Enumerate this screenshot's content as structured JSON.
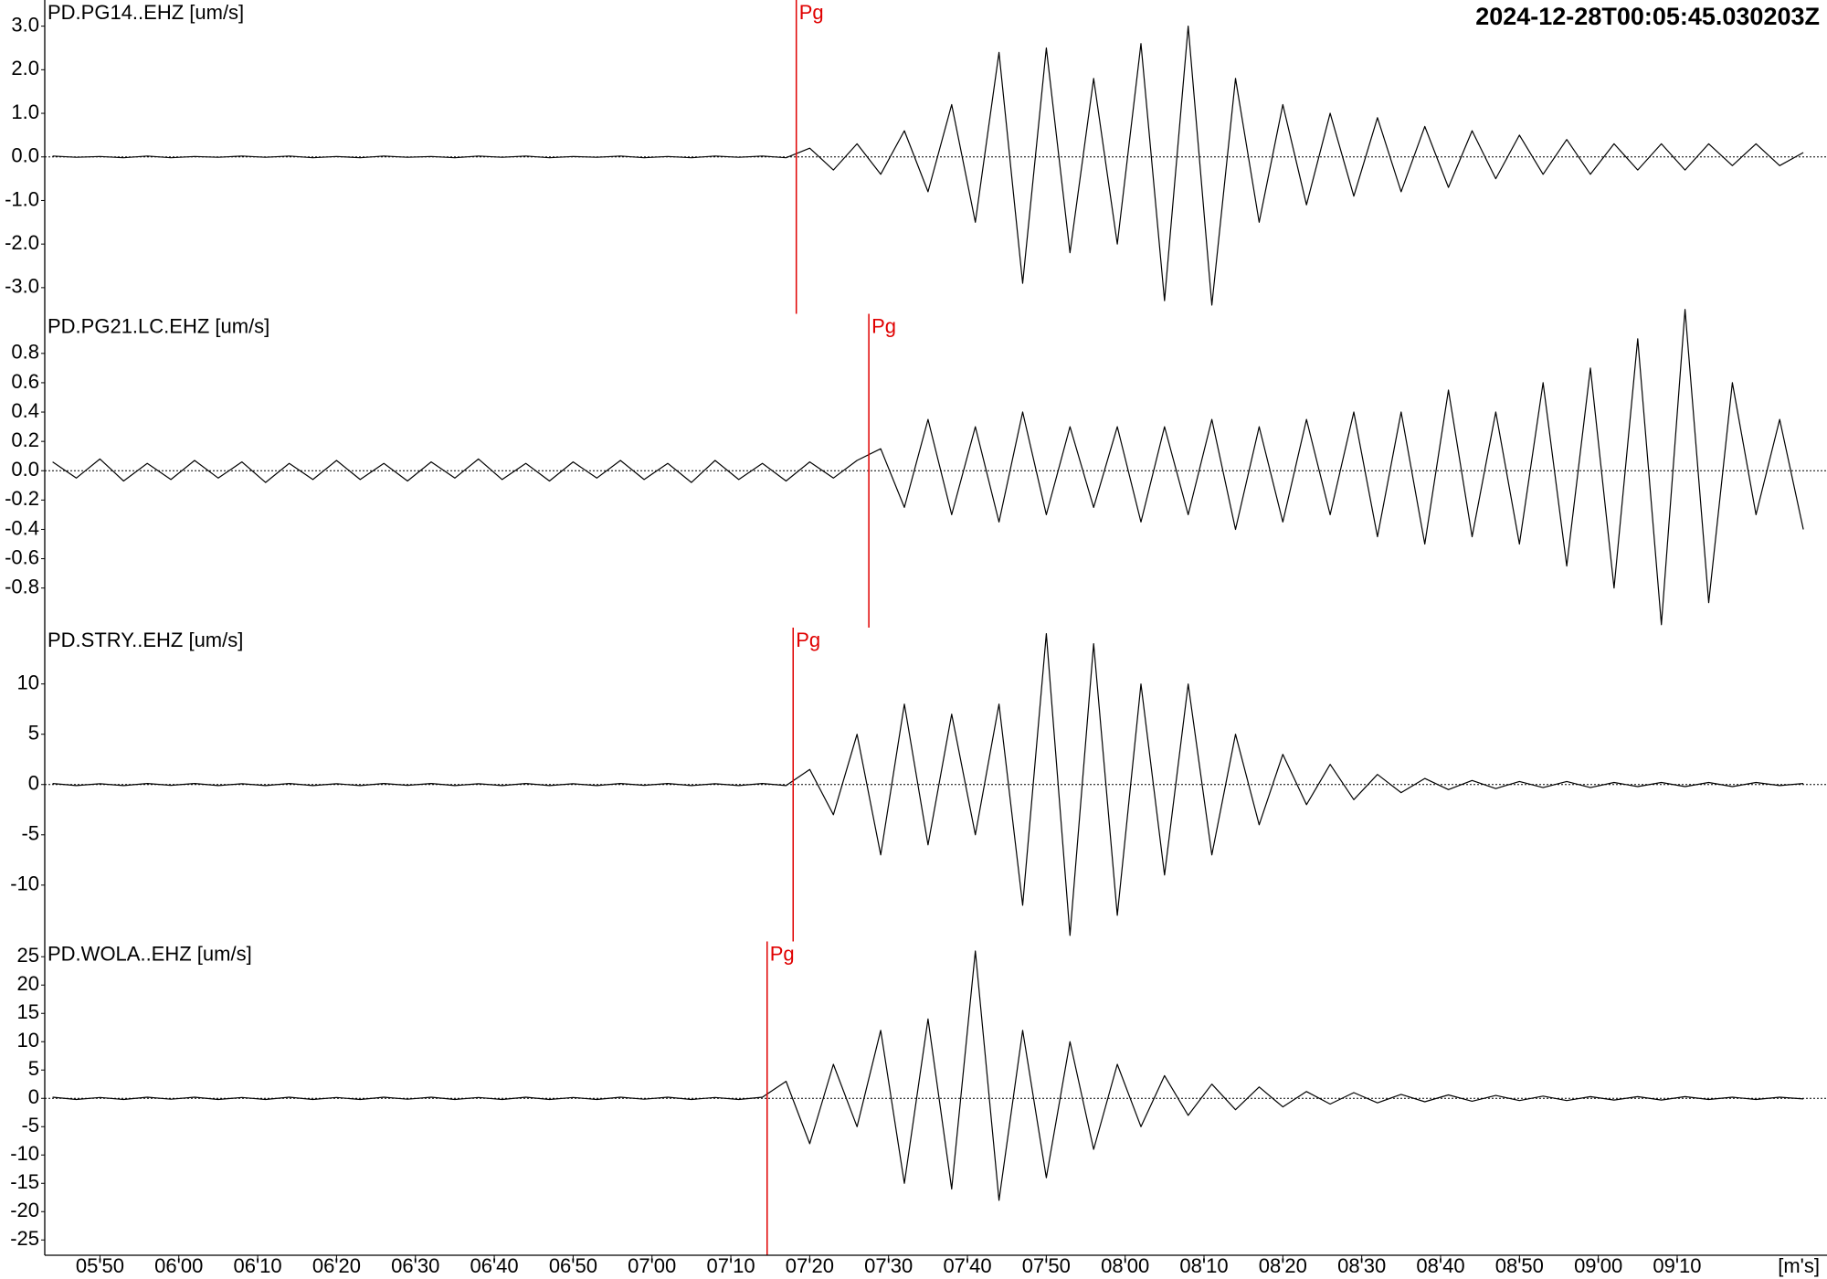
{
  "timestamp": "2024-12-28T00:05:45.030203Z",
  "chart_data": [
    {
      "type": "line",
      "title": "PD.PG14..EHZ [um/s]",
      "color": "#000000",
      "xlim": [
        343,
        569
      ],
      "ylim": [
        -3.6,
        3.6
      ],
      "yticks": [
        {
          "value": 3,
          "label": "3.0"
        },
        {
          "value": 2,
          "label": "2.0"
        },
        {
          "value": 1,
          "label": "1.0"
        },
        {
          "value": 0,
          "label": "0.0"
        },
        {
          "value": -1,
          "label": "-1.0"
        },
        {
          "value": -2,
          "label": "-2.0"
        },
        {
          "value": -3,
          "label": "-3.0"
        }
      ],
      "pick": {
        "label": "Pg",
        "x": 438.3,
        "color": "#e00000"
      },
      "x": [
        344,
        347,
        350,
        353,
        356,
        359,
        362,
        365,
        368,
        371,
        374,
        377,
        380,
        383,
        386,
        389,
        392,
        395,
        398,
        401,
        404,
        407,
        410,
        413,
        416,
        419,
        422,
        425,
        428,
        431,
        434,
        437,
        440,
        443,
        446,
        449,
        452,
        455,
        458,
        461,
        464,
        467,
        470,
        473,
        476,
        479,
        482,
        485,
        488,
        491,
        494,
        497,
        500,
        503,
        506,
        509,
        512,
        515,
        518,
        521,
        524,
        527,
        530,
        533,
        536,
        539,
        542,
        545,
        548,
        551,
        554,
        557,
        560,
        563,
        566
      ],
      "values": [
        0.02,
        -0.01,
        0.01,
        -0.02,
        0.02,
        -0.02,
        0.01,
        -0.01,
        0.02,
        -0.01,
        0.02,
        -0.02,
        0.01,
        -0.02,
        0.02,
        -0.01,
        0.01,
        -0.02,
        0.02,
        -0.01,
        0.02,
        -0.02,
        0.01,
        -0.01,
        0.02,
        -0.02,
        0.01,
        -0.02,
        0.02,
        -0.01,
        0.02,
        -0.02,
        0.2,
        -0.3,
        0.3,
        -0.4,
        0.6,
        -0.8,
        1.2,
        -1.5,
        2.4,
        -2.9,
        2.5,
        -2.2,
        1.8,
        -2.0,
        2.6,
        -3.3,
        3.0,
        -3.4,
        1.8,
        -1.5,
        1.2,
        -1.1,
        1.0,
        -0.9,
        0.9,
        -0.8,
        0.7,
        -0.7,
        0.6,
        -0.5,
        0.5,
        -0.4,
        0.4,
        -0.4,
        0.3,
        -0.3,
        0.3,
        -0.3,
        0.3,
        -0.2,
        0.3,
        -0.2,
        0.1
      ]
    },
    {
      "type": "line",
      "title": "PD.PG21.LC.EHZ [um/s]",
      "color": "#000000",
      "xlim": [
        343,
        569
      ],
      "ylim": [
        -1.07,
        1.07
      ],
      "yticks": [
        0.8,
        0.6,
        0.4,
        0.2,
        {
          "value": 0,
          "label": "0.0"
        },
        -0.2,
        -0.4,
        -0.6,
        -0.8
      ],
      "pick": {
        "label": "Pg",
        "x": 447.5,
        "color": "#e00000"
      },
      "x": [
        344,
        347,
        350,
        353,
        356,
        359,
        362,
        365,
        368,
        371,
        374,
        377,
        380,
        383,
        386,
        389,
        392,
        395,
        398,
        401,
        404,
        407,
        410,
        413,
        416,
        419,
        422,
        425,
        428,
        431,
        434,
        437,
        440,
        443,
        446,
        449,
        452,
        455,
        458,
        461,
        464,
        467,
        470,
        473,
        476,
        479,
        482,
        485,
        488,
        491,
        494,
        497,
        500,
        503,
        506,
        509,
        512,
        515,
        518,
        521,
        524,
        527,
        530,
        533,
        536,
        539,
        542,
        545,
        548,
        551,
        554,
        557,
        560,
        563,
        566
      ],
      "values": [
        0.06,
        -0.05,
        0.08,
        -0.07,
        0.05,
        -0.06,
        0.07,
        -0.05,
        0.06,
        -0.08,
        0.05,
        -0.06,
        0.07,
        -0.06,
        0.05,
        -0.07,
        0.06,
        -0.05,
        0.08,
        -0.06,
        0.05,
        -0.07,
        0.06,
        -0.05,
        0.07,
        -0.06,
        0.05,
        -0.08,
        0.07,
        -0.06,
        0.05,
        -0.07,
        0.06,
        -0.05,
        0.07,
        0.15,
        -0.25,
        0.35,
        -0.3,
        0.3,
        -0.35,
        0.4,
        -0.3,
        0.3,
        -0.25,
        0.3,
        -0.35,
        0.3,
        -0.3,
        0.35,
        -0.4,
        0.3,
        -0.35,
        0.35,
        -0.3,
        0.4,
        -0.45,
        0.4,
        -0.5,
        0.55,
        -0.45,
        0.4,
        -0.5,
        0.6,
        -0.65,
        0.7,
        -0.8,
        0.9,
        -1.05,
        1.1,
        -0.9,
        0.6,
        -0.3,
        0.35,
        -0.4
      ]
    },
    {
      "type": "line",
      "title": "PD.STRY..EHZ [um/s]",
      "color": "#000000",
      "xlim": [
        343,
        569
      ],
      "ylim": [
        -15.6,
        15.6
      ],
      "yticks": [
        10,
        5,
        0,
        -5,
        -10
      ],
      "pick": {
        "label": "Pg",
        "x": 437.9,
        "color": "#e00000"
      },
      "x": [
        344,
        347,
        350,
        353,
        356,
        359,
        362,
        365,
        368,
        371,
        374,
        377,
        380,
        383,
        386,
        389,
        392,
        395,
        398,
        401,
        404,
        407,
        410,
        413,
        416,
        419,
        422,
        425,
        428,
        431,
        434,
        437,
        440,
        443,
        446,
        449,
        452,
        455,
        458,
        461,
        464,
        467,
        470,
        473,
        476,
        479,
        482,
        485,
        488,
        491,
        494,
        497,
        500,
        503,
        506,
        509,
        512,
        515,
        518,
        521,
        524,
        527,
        530,
        533,
        536,
        539,
        542,
        545,
        548,
        551,
        554,
        557,
        560,
        563,
        566
      ],
      "values": [
        0.1,
        -0.1,
        0.08,
        -0.1,
        0.1,
        -0.08,
        0.1,
        -0.1,
        0.08,
        -0.1,
        0.1,
        -0.1,
        0.08,
        -0.1,
        0.1,
        -0.08,
        0.1,
        -0.1,
        0.08,
        -0.1,
        0.1,
        -0.1,
        0.08,
        -0.1,
        0.1,
        -0.08,
        0.1,
        -0.1,
        0.08,
        -0.1,
        0.1,
        -0.1,
        1.5,
        -3,
        5,
        -7,
        8,
        -6,
        7,
        -5,
        8,
        -12,
        15,
        -15,
        14,
        -13,
        10,
        -9,
        10,
        -7,
        5,
        -4,
        3,
        -2,
        2,
        -1.5,
        1,
        -0.8,
        0.6,
        -0.5,
        0.4,
        -0.4,
        0.3,
        -0.3,
        0.3,
        -0.3,
        0.2,
        -0.2,
        0.2,
        -0.2,
        0.2,
        -0.2,
        0.2,
        -0.1,
        0.1
      ]
    },
    {
      "type": "line",
      "title": "PD.WOLA..EHZ [um/s]",
      "color": "#000000",
      "xlim": [
        343,
        569
      ],
      "ylim": [
        -27.7,
        27.7
      ],
      "yticks": [
        25,
        20,
        15,
        10,
        5,
        0,
        -5,
        -10,
        -15,
        -20,
        -25
      ],
      "pick": {
        "label": "Pg",
        "x": 434.6,
        "color": "#e00000"
      },
      "xticks": [
        {
          "value": 350,
          "label": "05'50"
        },
        {
          "value": 360,
          "label": "06'00"
        },
        {
          "value": 370,
          "label": "06'10"
        },
        {
          "value": 380,
          "label": "06'20"
        },
        {
          "value": 390,
          "label": "06'30"
        },
        {
          "value": 400,
          "label": "06'40"
        },
        {
          "value": 410,
          "label": "06'50"
        },
        {
          "value": 420,
          "label": "07'00"
        },
        {
          "value": 430,
          "label": "07'10"
        },
        {
          "value": 440,
          "label": "07'20"
        },
        {
          "value": 450,
          "label": "07'30"
        },
        {
          "value": 460,
          "label": "07'40"
        },
        {
          "value": 470,
          "label": "07'50"
        },
        {
          "value": 480,
          "label": "08'00"
        },
        {
          "value": 490,
          "label": "08'10"
        },
        {
          "value": 500,
          "label": "08'20"
        },
        {
          "value": 510,
          "label": "08'30"
        },
        {
          "value": 520,
          "label": "08'40"
        },
        {
          "value": 530,
          "label": "08'50"
        },
        {
          "value": 540,
          "label": "09'00"
        },
        {
          "value": 550,
          "label": "09'10"
        }
      ],
      "xlabel": "[m's]",
      "x": [
        344,
        347,
        350,
        353,
        356,
        359,
        362,
        365,
        368,
        371,
        374,
        377,
        380,
        383,
        386,
        389,
        392,
        395,
        398,
        401,
        404,
        407,
        410,
        413,
        416,
        419,
        422,
        425,
        428,
        431,
        434,
        437,
        440,
        443,
        446,
        449,
        452,
        455,
        458,
        461,
        464,
        467,
        470,
        473,
        476,
        479,
        482,
        485,
        488,
        491,
        494,
        497,
        500,
        503,
        506,
        509,
        512,
        515,
        518,
        521,
        524,
        527,
        530,
        533,
        536,
        539,
        542,
        545,
        548,
        551,
        554,
        557,
        560,
        563,
        566
      ],
      "values": [
        0.2,
        -0.2,
        0.15,
        -0.2,
        0.2,
        -0.15,
        0.2,
        -0.2,
        0.15,
        -0.2,
        0.2,
        -0.2,
        0.15,
        -0.2,
        0.2,
        -0.15,
        0.2,
        -0.2,
        0.15,
        -0.2,
        0.2,
        -0.2,
        0.15,
        -0.2,
        0.2,
        -0.15,
        0.2,
        -0.2,
        0.15,
        -0.2,
        0.2,
        3,
        -8,
        6,
        -5,
        12,
        -15,
        14,
        -16,
        26,
        -18,
        12,
        -14,
        10,
        -9,
        6,
        -5,
        4,
        -3,
        2.5,
        -2,
        2,
        -1.5,
        1.2,
        -1,
        1,
        -0.8,
        0.7,
        -0.6,
        0.6,
        -0.5,
        0.5,
        -0.4,
        0.4,
        -0.4,
        0.3,
        -0.3,
        0.3,
        -0.3,
        0.3,
        -0.2,
        0.2,
        -0.2,
        0.2,
        -0.1
      ]
    }
  ]
}
